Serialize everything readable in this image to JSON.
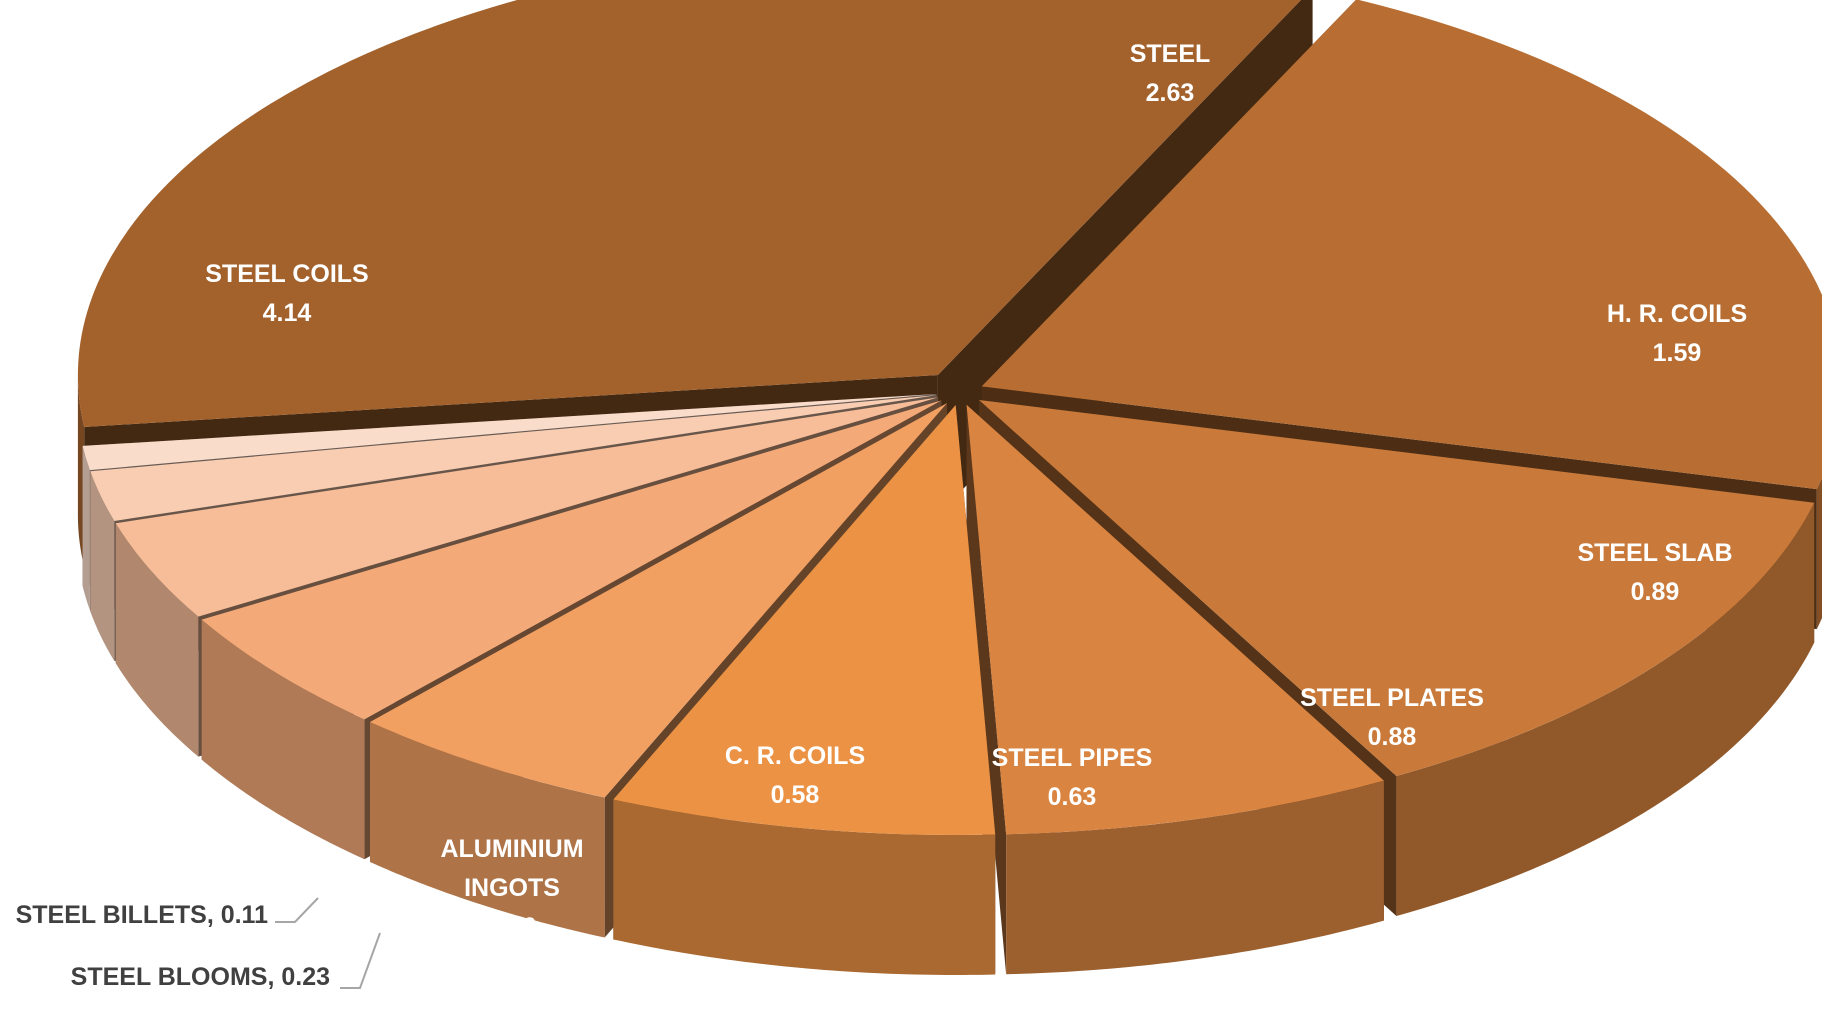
{
  "chart_data": {
    "type": "pie",
    "style": "3d-exploded",
    "slices": [
      {
        "label": "STEEL",
        "value": 2.63,
        "color": "#B86E32"
      },
      {
        "label": "H. R. COILS",
        "value": 1.59,
        "color": "#C97A3A"
      },
      {
        "label": "STEEL SLAB",
        "value": 0.89,
        "color": "#D98440"
      },
      {
        "label": "STEEL PLATES",
        "value": 0.88,
        "color": "#EB9244"
      },
      {
        "label": "STEEL PIPES",
        "value": 0.63,
        "color": "#F1A062"
      },
      {
        "label": "C. R. COILS",
        "value": 0.58,
        "color": "#F4AA78"
      },
      {
        "label": "ALUMINIUM INGOTS",
        "value": 0.46,
        "color": "#F6BD98"
      },
      {
        "label": "STEEL BLOOMS",
        "value": 0.23,
        "color": "#F8CDB2"
      },
      {
        "label": "STEEL BILLETS",
        "value": 0.11,
        "color": "#FADCCA"
      },
      {
        "label": "STEEL COILS",
        "value": 4.14,
        "color": "#A3612C"
      }
    ],
    "labels": {
      "STEEL": {
        "name": "STEEL",
        "value": "2.63"
      },
      "HR": {
        "name": "H. R. COILS",
        "value": "1.59"
      },
      "SLAB": {
        "name": "STEEL SLAB",
        "value": "0.89"
      },
      "PLATES": {
        "name": "STEEL PLATES",
        "value": "0.88"
      },
      "PIPES": {
        "name": "STEEL PIPES",
        "value": "0.63"
      },
      "CR": {
        "name": "C. R. COILS",
        "value": "0.58"
      },
      "ALU": {
        "name1": "ALUMINIUM",
        "name2": "INGOTS",
        "value": "0.46"
      },
      "COILS": {
        "name": "STEEL COILS",
        "value": "4.14"
      },
      "BLOOMS": {
        "text": "STEEL BLOOMS, 0.23"
      },
      "BILLETS": {
        "text": "STEEL BILLETS, 0.11"
      }
    }
  }
}
